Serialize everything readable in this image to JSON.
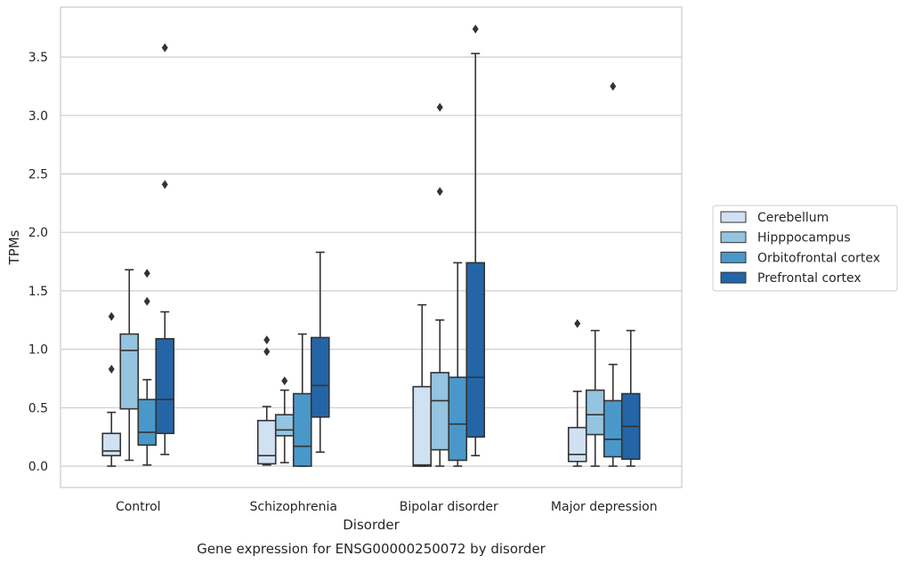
{
  "chart_data": {
    "type": "box",
    "title": "",
    "caption": "Gene expression for ENSG00000250072 by disorder",
    "xlabel": "Disorder",
    "ylabel": "TPMs",
    "ylim": [
      -0.18,
      3.94
    ],
    "yticks": [
      "0.0",
      "0.5",
      "1.0",
      "1.5",
      "2.0",
      "2.5",
      "3.0",
      "3.5"
    ],
    "grid": "horizontal",
    "legend_position": "right",
    "categories": [
      "Control",
      "Schizophrenia",
      "Bipolar disorder",
      "Major depression"
    ],
    "series": [
      {
        "name": "Cerebellum",
        "color": "#d0e1f2",
        "boxes": [
          {
            "whisker_low": 0.0,
            "q1": 0.09,
            "median": 0.13,
            "q3": 0.28,
            "whisker_high": 0.46,
            "outliers": [
              0.83,
              1.28
            ]
          },
          {
            "whisker_low": 0.01,
            "q1": 0.02,
            "median": 0.09,
            "q3": 0.39,
            "whisker_high": 0.51,
            "outliers": [
              0.98,
              1.08
            ]
          },
          {
            "whisker_low": 0.0,
            "q1": 0.0,
            "median": 0.01,
            "q3": 0.68,
            "whisker_high": 1.38,
            "outliers": []
          },
          {
            "whisker_low": 0.0,
            "q1": 0.04,
            "median": 0.1,
            "q3": 0.33,
            "whisker_high": 0.64,
            "outliers": [
              1.22
            ]
          }
        ]
      },
      {
        "name": "Hipppocampus",
        "color": "#94c4df",
        "boxes": [
          {
            "whisker_low": 0.05,
            "q1": 0.49,
            "median": 0.99,
            "q3": 1.13,
            "whisker_high": 1.68,
            "outliers": []
          },
          {
            "whisker_low": 0.03,
            "q1": 0.26,
            "median": 0.31,
            "q3": 0.44,
            "whisker_high": 0.65,
            "outliers": [
              0.73
            ]
          },
          {
            "whisker_low": 0.0,
            "q1": 0.14,
            "median": 0.56,
            "q3": 0.8,
            "whisker_high": 1.25,
            "outliers": [
              2.35,
              3.07
            ]
          },
          {
            "whisker_low": 0.0,
            "q1": 0.27,
            "median": 0.44,
            "q3": 0.65,
            "whisker_high": 1.16,
            "outliers": []
          }
        ]
      },
      {
        "name": "Orbitofrontal cortex",
        "color": "#4a98c9",
        "boxes": [
          {
            "whisker_low": 0.01,
            "q1": 0.18,
            "median": 0.29,
            "q3": 0.57,
            "whisker_high": 0.74,
            "outliers": [
              1.41,
              1.65
            ]
          },
          {
            "whisker_low": 0.0,
            "q1": 0.0,
            "median": 0.17,
            "q3": 0.62,
            "whisker_high": 1.13,
            "outliers": []
          },
          {
            "whisker_low": 0.0,
            "q1": 0.05,
            "median": 0.36,
            "q3": 0.76,
            "whisker_high": 1.74,
            "outliers": []
          },
          {
            "whisker_low": 0.0,
            "q1": 0.08,
            "median": 0.23,
            "q3": 0.56,
            "whisker_high": 0.87,
            "outliers": [
              3.25
            ]
          }
        ]
      },
      {
        "name": "Prefrontal cortex",
        "color": "#2465a8",
        "boxes": [
          {
            "whisker_low": 0.1,
            "q1": 0.28,
            "median": 0.57,
            "q3": 1.09,
            "whisker_high": 1.32,
            "outliers": [
              2.41,
              3.58
            ]
          },
          {
            "whisker_low": 0.12,
            "q1": 0.42,
            "median": 0.69,
            "q3": 1.1,
            "whisker_high": 1.83,
            "outliers": []
          },
          {
            "whisker_low": 0.09,
            "q1": 0.25,
            "median": 0.76,
            "q3": 1.74,
            "whisker_high": 3.53,
            "outliers": [
              3.74
            ]
          },
          {
            "whisker_low": 0.0,
            "q1": 0.06,
            "median": 0.34,
            "q3": 0.62,
            "whisker_high": 1.16,
            "outliers": []
          }
        ]
      }
    ]
  }
}
